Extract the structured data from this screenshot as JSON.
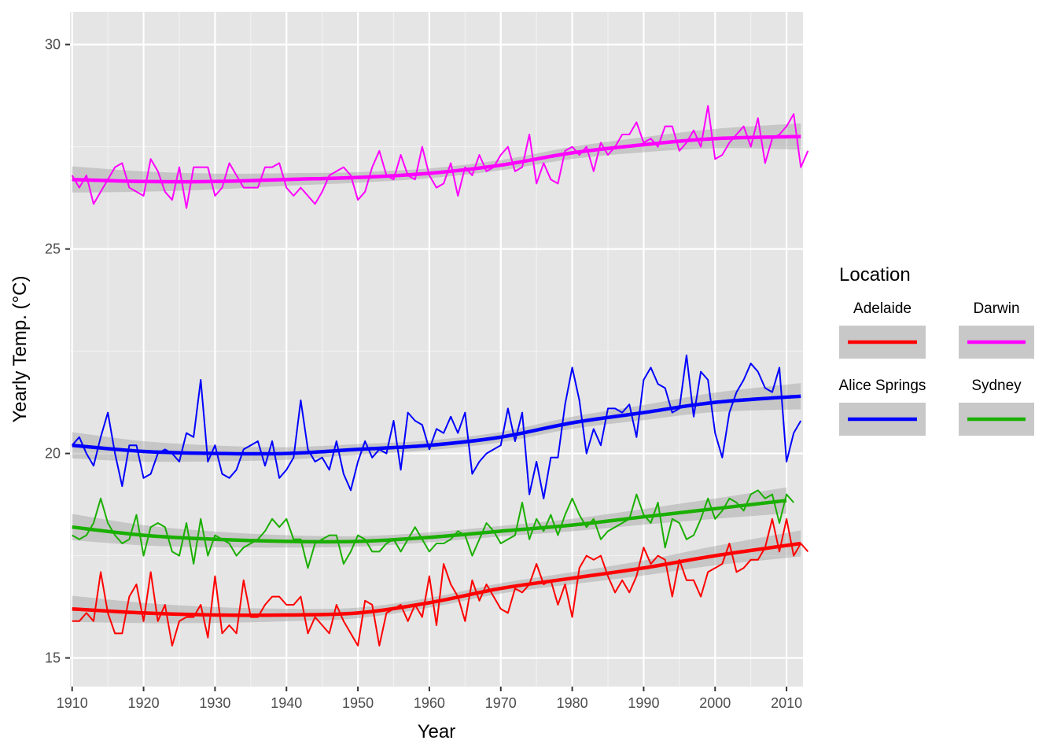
{
  "chart_data": {
    "type": "line",
    "xlabel": "Year",
    "ylabel": "Yearly Temp. (°C)",
    "xlim": [
      1909.7,
      1912.0
    ],
    "xlim_full": [
      1909.7,
      2012.3
    ],
    "ylim": [
      14.3,
      30.8
    ],
    "x_ticks": [
      1910,
      1920,
      1930,
      1940,
      1950,
      1960,
      1970,
      1980,
      1990,
      2000,
      2010
    ],
    "x_tick_labels": [
      "1910",
      "1920",
      "1930",
      "1940",
      "1950",
      "1960",
      "1970",
      "1980",
      "1990",
      "2000",
      "2010"
    ],
    "y_ticks": [
      15,
      20,
      25,
      30
    ],
    "y_tick_labels": [
      "15",
      "20",
      "25",
      "30"
    ],
    "grid": true,
    "legend": {
      "title": "Location",
      "position": "right",
      "entries": [
        "Adelaide",
        "Darwin",
        "Alice Springs",
        "Sydney"
      ]
    },
    "smooth": "loess trend with confidence band",
    "series": [
      {
        "name": "Adelaide",
        "color": "#ff0000",
        "x_start": 1910,
        "x_end": 2012,
        "values": [
          15.9,
          15.9,
          16.1,
          15.9,
          17.1,
          16.1,
          15.6,
          15.6,
          16.5,
          16.8,
          15.9,
          17.1,
          15.9,
          16.3,
          15.3,
          15.9,
          16.0,
          16.0,
          16.3,
          15.5,
          17.0,
          15.6,
          15.8,
          15.6,
          16.9,
          16.0,
          16.0,
          16.3,
          16.5,
          16.5,
          16.3,
          16.3,
          16.5,
          15.6,
          16.0,
          15.8,
          15.6,
          16.3,
          15.9,
          15.6,
          15.3,
          16.4,
          16.3,
          15.3,
          16.1,
          16.2,
          16.3,
          15.9,
          16.3,
          16.0,
          17.0,
          15.8,
          17.3,
          16.8,
          16.5,
          15.9,
          16.9,
          16.4,
          16.8,
          16.5,
          16.2,
          16.1,
          16.7,
          16.6,
          16.8,
          17.3,
          16.8,
          16.9,
          16.3,
          16.8,
          16.0,
          17.2,
          17.5,
          17.4,
          17.5,
          17.0,
          16.6,
          16.9,
          16.6,
          17.0,
          17.7,
          17.3,
          17.5,
          17.4,
          16.5,
          17.4,
          16.9,
          16.9,
          16.5,
          17.1,
          17.2,
          17.3,
          17.8,
          17.1,
          17.2,
          17.4,
          17.4,
          17.7,
          18.4,
          17.6,
          18.4,
          17.5,
          17.8,
          17.6
        ],
        "trend": [
          [
            1910,
            16.2
          ],
          [
            1920,
            16.1
          ],
          [
            1930,
            16.05
          ],
          [
            1940,
            16.05
          ],
          [
            1950,
            16.1
          ],
          [
            1960,
            16.35
          ],
          [
            1970,
            16.7
          ],
          [
            1980,
            16.95
          ],
          [
            1990,
            17.2
          ],
          [
            2000,
            17.5
          ],
          [
            2012,
            17.8
          ]
        ]
      },
      {
        "name": "Darwin",
        "color": "#ff00ff",
        "x_start": 1910,
        "x_end": 2012,
        "values": [
          26.8,
          26.5,
          26.8,
          26.1,
          26.4,
          26.7,
          27.0,
          27.1,
          26.5,
          26.4,
          26.3,
          27.2,
          26.9,
          26.4,
          26.2,
          27.0,
          26.0,
          27.0,
          27.0,
          27.0,
          26.3,
          26.5,
          27.1,
          26.8,
          26.5,
          26.5,
          26.5,
          27.0,
          27.0,
          27.1,
          26.5,
          26.3,
          26.5,
          26.3,
          26.1,
          26.4,
          26.8,
          26.9,
          27.0,
          26.8,
          26.2,
          26.4,
          27.0,
          27.4,
          26.8,
          26.7,
          27.3,
          26.8,
          26.7,
          27.5,
          26.8,
          26.5,
          26.6,
          27.1,
          26.3,
          27.0,
          26.8,
          27.3,
          26.9,
          27.0,
          27.3,
          27.5,
          26.9,
          27.0,
          27.8,
          26.6,
          27.1,
          26.7,
          26.6,
          27.4,
          27.5,
          27.3,
          27.5,
          26.9,
          27.6,
          27.3,
          27.5,
          27.8,
          27.8,
          28.1,
          27.6,
          27.7,
          27.5,
          28.0,
          28.0,
          27.4,
          27.6,
          27.9,
          27.5,
          28.5,
          27.2,
          27.3,
          27.6,
          27.8,
          28.0,
          27.5,
          28.2,
          27.1,
          27.7,
          27.8,
          28.0,
          28.3,
          27.0,
          27.4
        ],
        "trend": [
          [
            1910,
            26.7
          ],
          [
            1920,
            26.65
          ],
          [
            1930,
            26.65
          ],
          [
            1940,
            26.7
          ],
          [
            1950,
            26.75
          ],
          [
            1960,
            26.85
          ],
          [
            1970,
            27.05
          ],
          [
            1980,
            27.35
          ],
          [
            1990,
            27.55
          ],
          [
            2000,
            27.7
          ],
          [
            2012,
            27.75
          ]
        ]
      },
      {
        "name": "Alice Springs",
        "color": "#0000ff",
        "x_start": 1910,
        "x_end": 2012,
        "values": [
          20.2,
          20.4,
          20.0,
          19.7,
          20.4,
          21.0,
          20.0,
          19.2,
          20.2,
          20.2,
          19.4,
          19.5,
          20.0,
          20.1,
          20.0,
          19.8,
          20.5,
          20.4,
          21.8,
          19.8,
          20.2,
          19.5,
          19.4,
          19.6,
          20.1,
          20.2,
          20.3,
          19.7,
          20.3,
          19.4,
          19.6,
          19.9,
          21.3,
          20.1,
          19.8,
          19.9,
          19.6,
          20.3,
          19.5,
          19.1,
          19.8,
          20.3,
          19.9,
          20.1,
          20.0,
          20.8,
          19.6,
          21.0,
          20.8,
          20.7,
          20.1,
          20.6,
          20.5,
          20.9,
          20.5,
          21.0,
          19.5,
          19.8,
          20.0,
          20.1,
          20.2,
          21.1,
          20.3,
          21.0,
          19.0,
          19.8,
          18.9,
          19.9,
          19.9,
          21.2,
          22.1,
          21.3,
          20.0,
          20.6,
          20.2,
          21.1,
          21.1,
          21.0,
          21.2,
          20.4,
          21.8,
          22.1,
          21.7,
          21.6,
          21.0,
          21.1,
          22.4,
          20.9,
          22.0,
          21.8,
          20.5,
          19.9,
          21.0,
          21.5,
          21.8,
          22.2,
          22.0,
          21.6,
          21.5,
          22.1,
          19.8,
          20.5,
          20.8
        ],
        "trend": [
          [
            1910,
            20.2
          ],
          [
            1920,
            20.05
          ],
          [
            1930,
            20.0
          ],
          [
            1940,
            20.0
          ],
          [
            1950,
            20.1
          ],
          [
            1960,
            20.2
          ],
          [
            1970,
            20.4
          ],
          [
            1980,
            20.75
          ],
          [
            1990,
            21.0
          ],
          [
            2000,
            21.25
          ],
          [
            2012,
            21.4
          ]
        ]
      },
      {
        "name": "Sydney",
        "color": "#1aaf00",
        "x_start": 1910,
        "x_end": 2010,
        "values": [
          18.0,
          17.9,
          18.0,
          18.3,
          18.9,
          18.3,
          18.0,
          17.8,
          17.9,
          18.5,
          17.5,
          18.2,
          18.3,
          18.2,
          17.6,
          17.5,
          18.3,
          17.3,
          18.4,
          17.5,
          18.0,
          17.9,
          17.8,
          17.5,
          17.7,
          17.8,
          17.9,
          18.1,
          18.4,
          18.2,
          18.4,
          17.9,
          17.9,
          17.2,
          17.8,
          17.9,
          18.0,
          18.0,
          17.3,
          17.6,
          18.0,
          17.9,
          17.6,
          17.6,
          17.8,
          17.9,
          17.6,
          17.9,
          18.2,
          17.9,
          17.6,
          17.8,
          17.8,
          17.9,
          18.1,
          18.0,
          17.5,
          17.9,
          18.3,
          18.1,
          17.8,
          17.9,
          18.0,
          18.8,
          17.9,
          18.4,
          18.1,
          18.5,
          18.0,
          18.5,
          18.9,
          18.5,
          18.2,
          18.4,
          17.9,
          18.1,
          18.2,
          18.3,
          18.4,
          19.0,
          18.5,
          18.3,
          18.8,
          17.7,
          18.4,
          18.3,
          17.9,
          18.0,
          18.4,
          18.9,
          18.4,
          18.6,
          18.9,
          18.8,
          18.6,
          19.0,
          19.1,
          18.9,
          19.0,
          18.3,
          19.0,
          18.8
        ],
        "trend": [
          [
            1910,
            18.2
          ],
          [
            1920,
            18.0
          ],
          [
            1930,
            17.9
          ],
          [
            1940,
            17.85
          ],
          [
            1950,
            17.85
          ],
          [
            1960,
            17.95
          ],
          [
            1970,
            18.1
          ],
          [
            1980,
            18.25
          ],
          [
            1990,
            18.45
          ],
          [
            2000,
            18.65
          ],
          [
            2010,
            18.85
          ]
        ]
      }
    ]
  }
}
